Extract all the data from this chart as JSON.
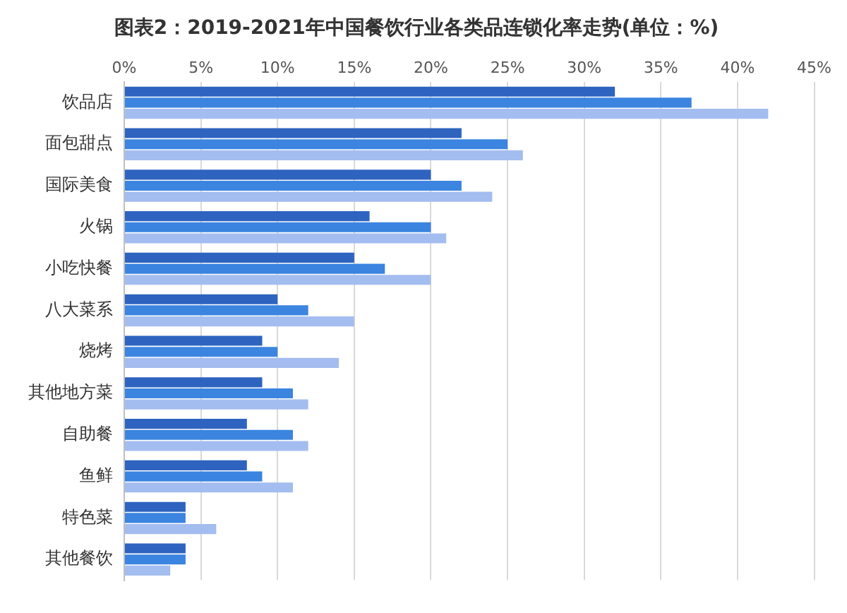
{
  "chart_data": {
    "type": "bar",
    "orientation": "horizontal",
    "title": "图表2：2019-2021年中国餐饮行业各类品连锁化率走势(单位：%)",
    "categories": [
      "饮品店",
      "面包甜点",
      "国际美食",
      "火锅",
      "小吃快餐",
      "八大菜系",
      "烧烤",
      "其他地方菜",
      "自助餐",
      "鱼鲜",
      "特色菜",
      "其他餐饮"
    ],
    "series": [
      {
        "color": "#2e64c0",
        "values": [
          32,
          22,
          20,
          16,
          15,
          10,
          9,
          9,
          8,
          8,
          4,
          4
        ]
      },
      {
        "color": "#3b84e0",
        "values": [
          37,
          25,
          22,
          20,
          17,
          12,
          10,
          11,
          11,
          9,
          4,
          4
        ]
      },
      {
        "color": "#a4bdf0",
        "values": [
          42,
          26,
          24,
          21,
          20,
          15,
          14,
          12,
          12,
          11,
          6,
          3
        ]
      }
    ],
    "xlim": [
      0,
      45
    ],
    "xticks": [
      {
        "value": 0,
        "label": "0%"
      },
      {
        "value": 5,
        "label": "5%"
      },
      {
        "value": 10,
        "label": "10%"
      },
      {
        "value": 15,
        "label": "15%"
      },
      {
        "value": 20,
        "label": "20%"
      },
      {
        "value": 25,
        "label": "25%"
      },
      {
        "value": 30,
        "label": "30%"
      },
      {
        "value": 35,
        "label": "35%"
      },
      {
        "value": 40,
        "label": "40%"
      },
      {
        "value": 45,
        "label": "45%"
      }
    ],
    "grid": "x",
    "legend": false
  }
}
